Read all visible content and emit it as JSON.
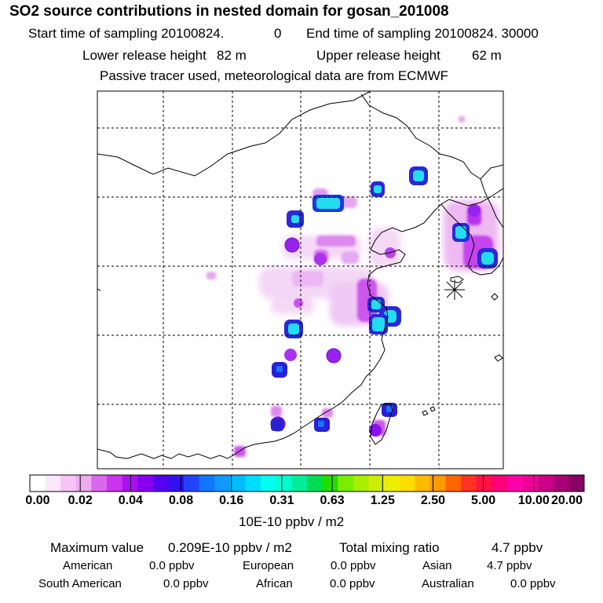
{
  "header": {
    "title": "SO2 source contributions in nested domain for gosan_201008",
    "start_label": "Start time of sampling 20100824.",
    "start_value": "0",
    "end_label": "End time of sampling 20100824. 30000",
    "lower_label": "Lower release height",
    "lower_value": "82 m",
    "upper_label": "Upper release height",
    "upper_value": "62 m",
    "note": "Passive tracer used, meteorological data are from ECMWF"
  },
  "colorbar": {
    "labels": [
      "0.00",
      "0.02",
      "0.04",
      "0.08",
      "0.16",
      "0.31",
      "0.63",
      "1.25",
      "2.50",
      "5.00",
      "10.00",
      "20.00"
    ],
    "colors": [
      "#ffffff",
      "#fce8fc",
      "#f6c4f6",
      "#eeaaf0",
      "#dd66ee",
      "#cc33ee",
      "#aa11ee",
      "#8800ee",
      "#5500ee",
      "#3311ee",
      "#2244ff",
      "#1177ff",
      "#1199ff",
      "#00bbff",
      "#00ddff",
      "#00ffee",
      "#00ffcc",
      "#00ee99",
      "#00dd55",
      "#22dd00",
      "#77ee00",
      "#aaee00",
      "#ccee00",
      "#eeee00",
      "#ffdd00",
      "#ffbb00",
      "#ff9900",
      "#ff6600",
      "#ff3322",
      "#ff1144",
      "#ff0077",
      "#ff00aa",
      "#ee0099",
      "#cc0088",
      "#aa0077",
      "#880066"
    ],
    "unit": "10E-10 ppbv / m2"
  },
  "summary": {
    "max_label": "Maximum value",
    "max_value": "0.209E-10 ppbv / m2",
    "total_label": "Total mixing ratio",
    "total_value": "4.7 ppbv",
    "regions": [
      {
        "name": "American",
        "value": "0.0 ppbv"
      },
      {
        "name": "European",
        "value": "0.0 ppbv"
      },
      {
        "name": "Asian",
        "value": "4.7 ppbv"
      },
      {
        "name": "South American",
        "value": "0.0 ppbv"
      },
      {
        "name": "African",
        "value": "0.0 ppbv"
      },
      {
        "name": "Australian",
        "value": "0.0 ppbv"
      }
    ]
  },
  "map": {
    "receptor_symbol": "star",
    "grid_style": "dashed",
    "source_levels": [
      "light-pink",
      "pink",
      "violet",
      "blue",
      "cyan"
    ]
  }
}
